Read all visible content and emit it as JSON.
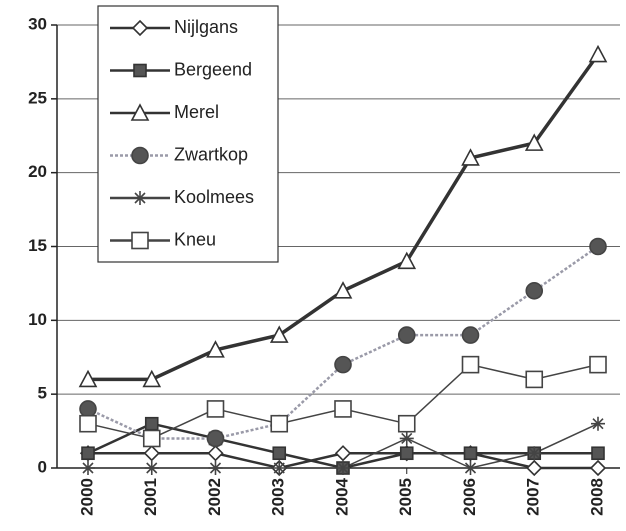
{
  "chart_data": {
    "type": "line",
    "categories": [
      "2000",
      "2001",
      "2002",
      "2003",
      "2004",
      "2005",
      "2006",
      "2007",
      "2008"
    ],
    "series": [
      {
        "name": "Nijlgans",
        "color": "#333333",
        "marker": "diamond",
        "values": [
          1,
          1,
          1,
          0,
          1,
          1,
          1,
          0,
          0
        ]
      },
      {
        "name": "Bergeend",
        "color": "#333333",
        "marker": "square-filled",
        "values": [
          1,
          3,
          2,
          1,
          0,
          1,
          1,
          1,
          1
        ]
      },
      {
        "name": "Merel",
        "color": "#333333",
        "marker": "triangle",
        "values": [
          6,
          6,
          8,
          9,
          12,
          14,
          21,
          22,
          28
        ]
      },
      {
        "name": "Zwartkop",
        "color": "#9a9aa8",
        "marker": "circle",
        "values": [
          4,
          2,
          2,
          3,
          7,
          9,
          9,
          12,
          15
        ]
      },
      {
        "name": "Koolmees",
        "color": "#444444",
        "marker": "star",
        "values": [
          0,
          0,
          0,
          0,
          0,
          2,
          0,
          1,
          3
        ]
      },
      {
        "name": "Kneu",
        "color": "#444444",
        "marker": "square-open",
        "values": [
          3,
          2,
          4,
          3,
          4,
          3,
          7,
          6,
          7
        ]
      }
    ],
    "ylim": [
      0,
      30
    ],
    "yticks": [
      0,
      5,
      10,
      15,
      20,
      25,
      30
    ],
    "grid": true,
    "legend": "upper left"
  }
}
